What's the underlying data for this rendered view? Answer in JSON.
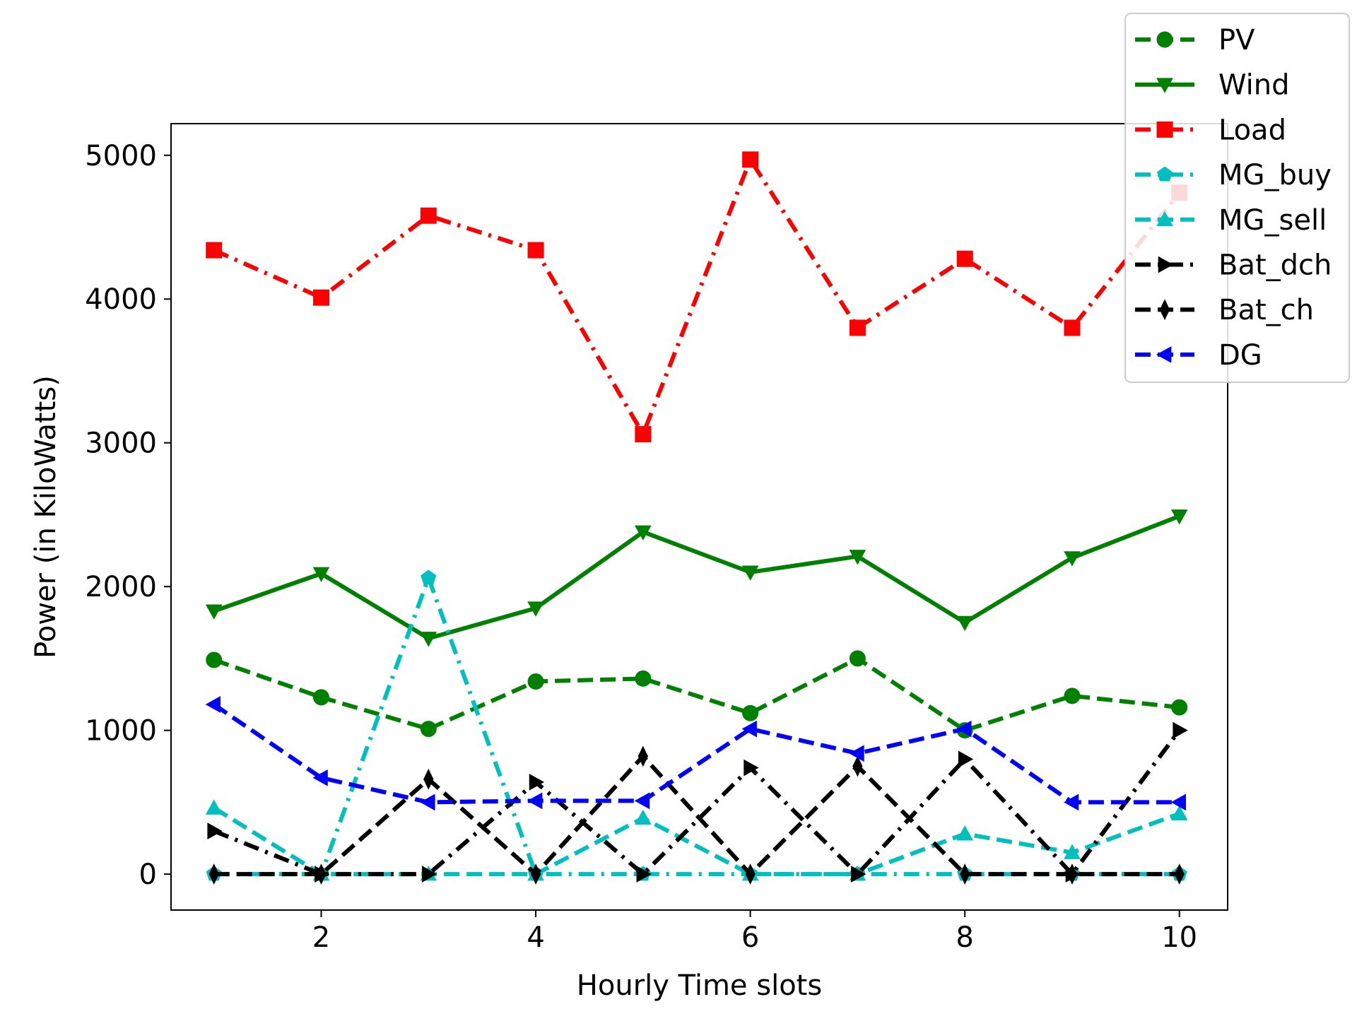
{
  "chart_data": {
    "type": "line",
    "title": "",
    "xlabel": "Hourly Time slots",
    "ylabel": "Power (in KiloWatts)",
    "xlim": [
      0.6,
      10.45
    ],
    "ylim": [
      -250,
      5220
    ],
    "xticks": [
      2,
      4,
      6,
      8,
      10
    ],
    "yticks": [
      0,
      1000,
      2000,
      3000,
      4000,
      5000
    ],
    "legend_position": "upper right",
    "grid": false,
    "x": [
      1,
      2,
      3,
      4,
      5,
      6,
      7,
      8,
      9,
      10
    ],
    "series": [
      {
        "name": "PV",
        "color": "#008000",
        "dash": "dashed",
        "marker": "circle",
        "values": [
          1490,
          1230,
          1010,
          1340,
          1360,
          1120,
          1500,
          1000,
          1240,
          1160
        ]
      },
      {
        "name": "Wind",
        "color": "#008000",
        "dash": "solid",
        "marker": "triangle-down",
        "values": [
          1830,
          2090,
          1640,
          1850,
          2380,
          2100,
          2210,
          1750,
          2200,
          2490
        ]
      },
      {
        "name": "Load",
        "color": "#ff0000",
        "dash": "dashdot",
        "marker": "square",
        "values": [
          4340,
          4010,
          4580,
          4340,
          3060,
          4970,
          3800,
          4280,
          3800,
          4740
        ]
      },
      {
        "name": "MG_buy",
        "color": "#00bfbf",
        "dash": "dashdot",
        "marker": "pentagon",
        "values": [
          0,
          0,
          2060,
          0,
          0,
          0,
          0,
          0,
          0,
          0
        ]
      },
      {
        "name": "MG_sell",
        "color": "#00bfbf",
        "dash": "dashed",
        "marker": "triangle-up",
        "values": [
          460,
          0,
          0,
          0,
          390,
          0,
          0,
          280,
          150,
          420
        ]
      },
      {
        "name": "Bat_dch",
        "color": "#000000",
        "dash": "dashdot",
        "marker": "triangle-right",
        "values": [
          300,
          0,
          0,
          640,
          0,
          740,
          0,
          800,
          0,
          1000
        ]
      },
      {
        "name": "Bat_ch",
        "color": "#000000",
        "dash": "dashed",
        "marker": "thin-diamond",
        "values": [
          0,
          0,
          660,
          0,
          820,
          0,
          750,
          0,
          0,
          0
        ]
      },
      {
        "name": "DG",
        "color": "#0000ff",
        "dash": "dashed",
        "marker": "triangle-left",
        "values": [
          1180,
          670,
          500,
          510,
          510,
          1010,
          840,
          1010,
          500,
          500
        ]
      }
    ]
  }
}
